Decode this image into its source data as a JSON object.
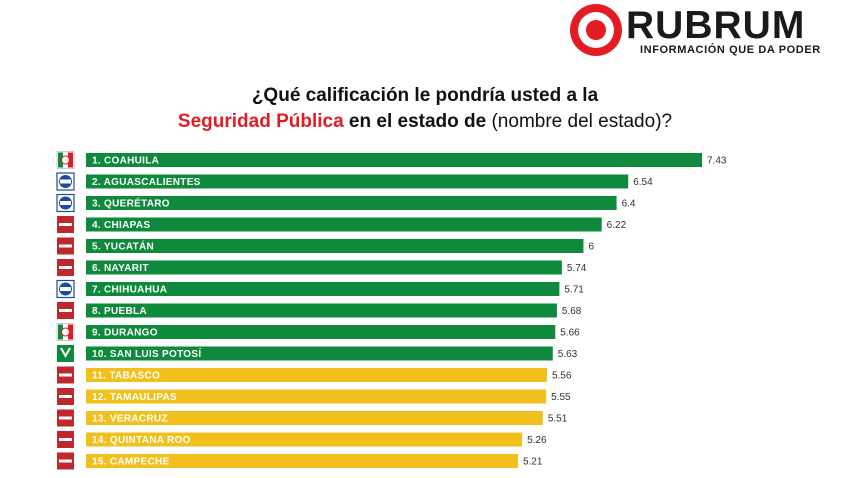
{
  "brand": {
    "name": "RUBRUM",
    "tagline": "INFORMACIÓN QUE DA PODER"
  },
  "title": {
    "line1": "¿Qué calificación le pondría usted a la",
    "highlight": "Seguridad Pública",
    "middle": " en el estado de ",
    "suffix": "(nombre del estado)?"
  },
  "colors": {
    "green": "#0f8a3c",
    "yellow": "#f2c01d",
    "red": "#e31b23",
    "pan_blue": "#1d4ba0"
  },
  "party_logos": {
    "PRI": "pri-logo-icon",
    "PAN": "pan-logo-icon",
    "MORENA": "morena-logo-icon",
    "PVEM": "pvem-logo-icon"
  },
  "chart_data": {
    "type": "bar",
    "orientation": "horizontal",
    "categories": [
      "1. COAHUILA",
      "2. AGUASCALIENTES",
      "3. QUERÉTARO",
      "4. CHIAPAS",
      "5. YUCATÁN",
      "6. NAYARIT",
      "7. CHIHUAHUA",
      "8. PUEBLA",
      "9. DURANGO",
      "10. SAN LUIS POTOSÍ",
      "11. TABASCO",
      "12. TAMAULIPAS",
      "13. VERACRUZ",
      "14. QUINTANA ROO",
      "15. CAMPECHE"
    ],
    "values": [
      7.43,
      6.54,
      6.4,
      6.22,
      6,
      5.74,
      5.71,
      5.68,
      5.66,
      5.63,
      5.56,
      5.55,
      5.51,
      5.26,
      5.21
    ],
    "value_labels": [
      "7.43",
      "6.54",
      "6.4",
      "6.22",
      "6",
      "5.74",
      "5.71",
      "5.68",
      "5.66",
      "5.63",
      "5.56",
      "5.55",
      "5.51",
      "5.26",
      "5.21"
    ],
    "bar_colors": [
      "green",
      "green",
      "green",
      "green",
      "green",
      "green",
      "green",
      "green",
      "green",
      "green",
      "yellow",
      "yellow",
      "yellow",
      "yellow",
      "yellow"
    ],
    "party": [
      "PRI",
      "PAN",
      "PAN",
      "MORENA",
      "MORENA",
      "MORENA",
      "PAN",
      "MORENA",
      "PRI",
      "PVEM",
      "MORENA",
      "MORENA",
      "MORENA",
      "MORENA",
      "MORENA"
    ],
    "xlim": [
      0,
      7.43
    ],
    "grid": false,
    "legend": "none"
  }
}
